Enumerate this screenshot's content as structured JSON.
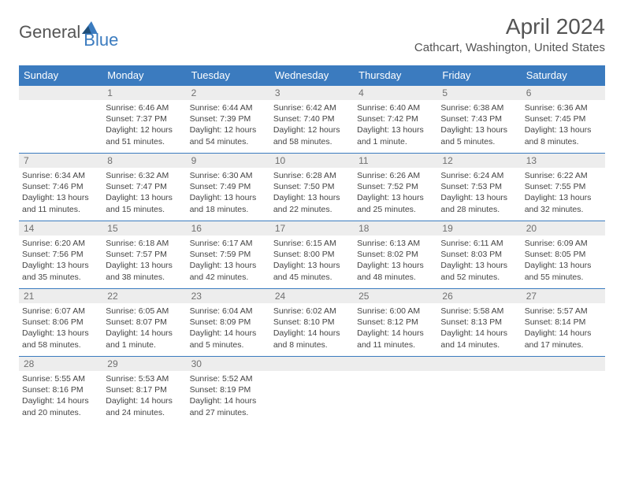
{
  "logo": {
    "text_general": "General",
    "text_blue": "Blue"
  },
  "title": "April 2024",
  "location": "Cathcart, Washington, United States",
  "colors": {
    "header_bg": "#3b7bbf",
    "header_text": "#ffffff",
    "daynum_bg": "#ededed",
    "daynum_text": "#707070",
    "border": "#3b7bbf",
    "body_text": "#444444"
  },
  "weekdays": [
    "Sunday",
    "Monday",
    "Tuesday",
    "Wednesday",
    "Thursday",
    "Friday",
    "Saturday"
  ],
  "weeks": [
    [
      {
        "num": "",
        "lines": []
      },
      {
        "num": "1",
        "lines": [
          "Sunrise: 6:46 AM",
          "Sunset: 7:37 PM",
          "Daylight: 12 hours and 51 minutes."
        ]
      },
      {
        "num": "2",
        "lines": [
          "Sunrise: 6:44 AM",
          "Sunset: 7:39 PM",
          "Daylight: 12 hours and 54 minutes."
        ]
      },
      {
        "num": "3",
        "lines": [
          "Sunrise: 6:42 AM",
          "Sunset: 7:40 PM",
          "Daylight: 12 hours and 58 minutes."
        ]
      },
      {
        "num": "4",
        "lines": [
          "Sunrise: 6:40 AM",
          "Sunset: 7:42 PM",
          "Daylight: 13 hours and 1 minute."
        ]
      },
      {
        "num": "5",
        "lines": [
          "Sunrise: 6:38 AM",
          "Sunset: 7:43 PM",
          "Daylight: 13 hours and 5 minutes."
        ]
      },
      {
        "num": "6",
        "lines": [
          "Sunrise: 6:36 AM",
          "Sunset: 7:45 PM",
          "Daylight: 13 hours and 8 minutes."
        ]
      }
    ],
    [
      {
        "num": "7",
        "lines": [
          "Sunrise: 6:34 AM",
          "Sunset: 7:46 PM",
          "Daylight: 13 hours and 11 minutes."
        ]
      },
      {
        "num": "8",
        "lines": [
          "Sunrise: 6:32 AM",
          "Sunset: 7:47 PM",
          "Daylight: 13 hours and 15 minutes."
        ]
      },
      {
        "num": "9",
        "lines": [
          "Sunrise: 6:30 AM",
          "Sunset: 7:49 PM",
          "Daylight: 13 hours and 18 minutes."
        ]
      },
      {
        "num": "10",
        "lines": [
          "Sunrise: 6:28 AM",
          "Sunset: 7:50 PM",
          "Daylight: 13 hours and 22 minutes."
        ]
      },
      {
        "num": "11",
        "lines": [
          "Sunrise: 6:26 AM",
          "Sunset: 7:52 PM",
          "Daylight: 13 hours and 25 minutes."
        ]
      },
      {
        "num": "12",
        "lines": [
          "Sunrise: 6:24 AM",
          "Sunset: 7:53 PM",
          "Daylight: 13 hours and 28 minutes."
        ]
      },
      {
        "num": "13",
        "lines": [
          "Sunrise: 6:22 AM",
          "Sunset: 7:55 PM",
          "Daylight: 13 hours and 32 minutes."
        ]
      }
    ],
    [
      {
        "num": "14",
        "lines": [
          "Sunrise: 6:20 AM",
          "Sunset: 7:56 PM",
          "Daylight: 13 hours and 35 minutes."
        ]
      },
      {
        "num": "15",
        "lines": [
          "Sunrise: 6:18 AM",
          "Sunset: 7:57 PM",
          "Daylight: 13 hours and 38 minutes."
        ]
      },
      {
        "num": "16",
        "lines": [
          "Sunrise: 6:17 AM",
          "Sunset: 7:59 PM",
          "Daylight: 13 hours and 42 minutes."
        ]
      },
      {
        "num": "17",
        "lines": [
          "Sunrise: 6:15 AM",
          "Sunset: 8:00 PM",
          "Daylight: 13 hours and 45 minutes."
        ]
      },
      {
        "num": "18",
        "lines": [
          "Sunrise: 6:13 AM",
          "Sunset: 8:02 PM",
          "Daylight: 13 hours and 48 minutes."
        ]
      },
      {
        "num": "19",
        "lines": [
          "Sunrise: 6:11 AM",
          "Sunset: 8:03 PM",
          "Daylight: 13 hours and 52 minutes."
        ]
      },
      {
        "num": "20",
        "lines": [
          "Sunrise: 6:09 AM",
          "Sunset: 8:05 PM",
          "Daylight: 13 hours and 55 minutes."
        ]
      }
    ],
    [
      {
        "num": "21",
        "lines": [
          "Sunrise: 6:07 AM",
          "Sunset: 8:06 PM",
          "Daylight: 13 hours and 58 minutes."
        ]
      },
      {
        "num": "22",
        "lines": [
          "Sunrise: 6:05 AM",
          "Sunset: 8:07 PM",
          "Daylight: 14 hours and 1 minute."
        ]
      },
      {
        "num": "23",
        "lines": [
          "Sunrise: 6:04 AM",
          "Sunset: 8:09 PM",
          "Daylight: 14 hours and 5 minutes."
        ]
      },
      {
        "num": "24",
        "lines": [
          "Sunrise: 6:02 AM",
          "Sunset: 8:10 PM",
          "Daylight: 14 hours and 8 minutes."
        ]
      },
      {
        "num": "25",
        "lines": [
          "Sunrise: 6:00 AM",
          "Sunset: 8:12 PM",
          "Daylight: 14 hours and 11 minutes."
        ]
      },
      {
        "num": "26",
        "lines": [
          "Sunrise: 5:58 AM",
          "Sunset: 8:13 PM",
          "Daylight: 14 hours and 14 minutes."
        ]
      },
      {
        "num": "27",
        "lines": [
          "Sunrise: 5:57 AM",
          "Sunset: 8:14 PM",
          "Daylight: 14 hours and 17 minutes."
        ]
      }
    ],
    [
      {
        "num": "28",
        "lines": [
          "Sunrise: 5:55 AM",
          "Sunset: 8:16 PM",
          "Daylight: 14 hours and 20 minutes."
        ]
      },
      {
        "num": "29",
        "lines": [
          "Sunrise: 5:53 AM",
          "Sunset: 8:17 PM",
          "Daylight: 14 hours and 24 minutes."
        ]
      },
      {
        "num": "30",
        "lines": [
          "Sunrise: 5:52 AM",
          "Sunset: 8:19 PM",
          "Daylight: 14 hours and 27 minutes."
        ]
      },
      {
        "num": "",
        "lines": []
      },
      {
        "num": "",
        "lines": []
      },
      {
        "num": "",
        "lines": []
      },
      {
        "num": "",
        "lines": []
      }
    ]
  ]
}
